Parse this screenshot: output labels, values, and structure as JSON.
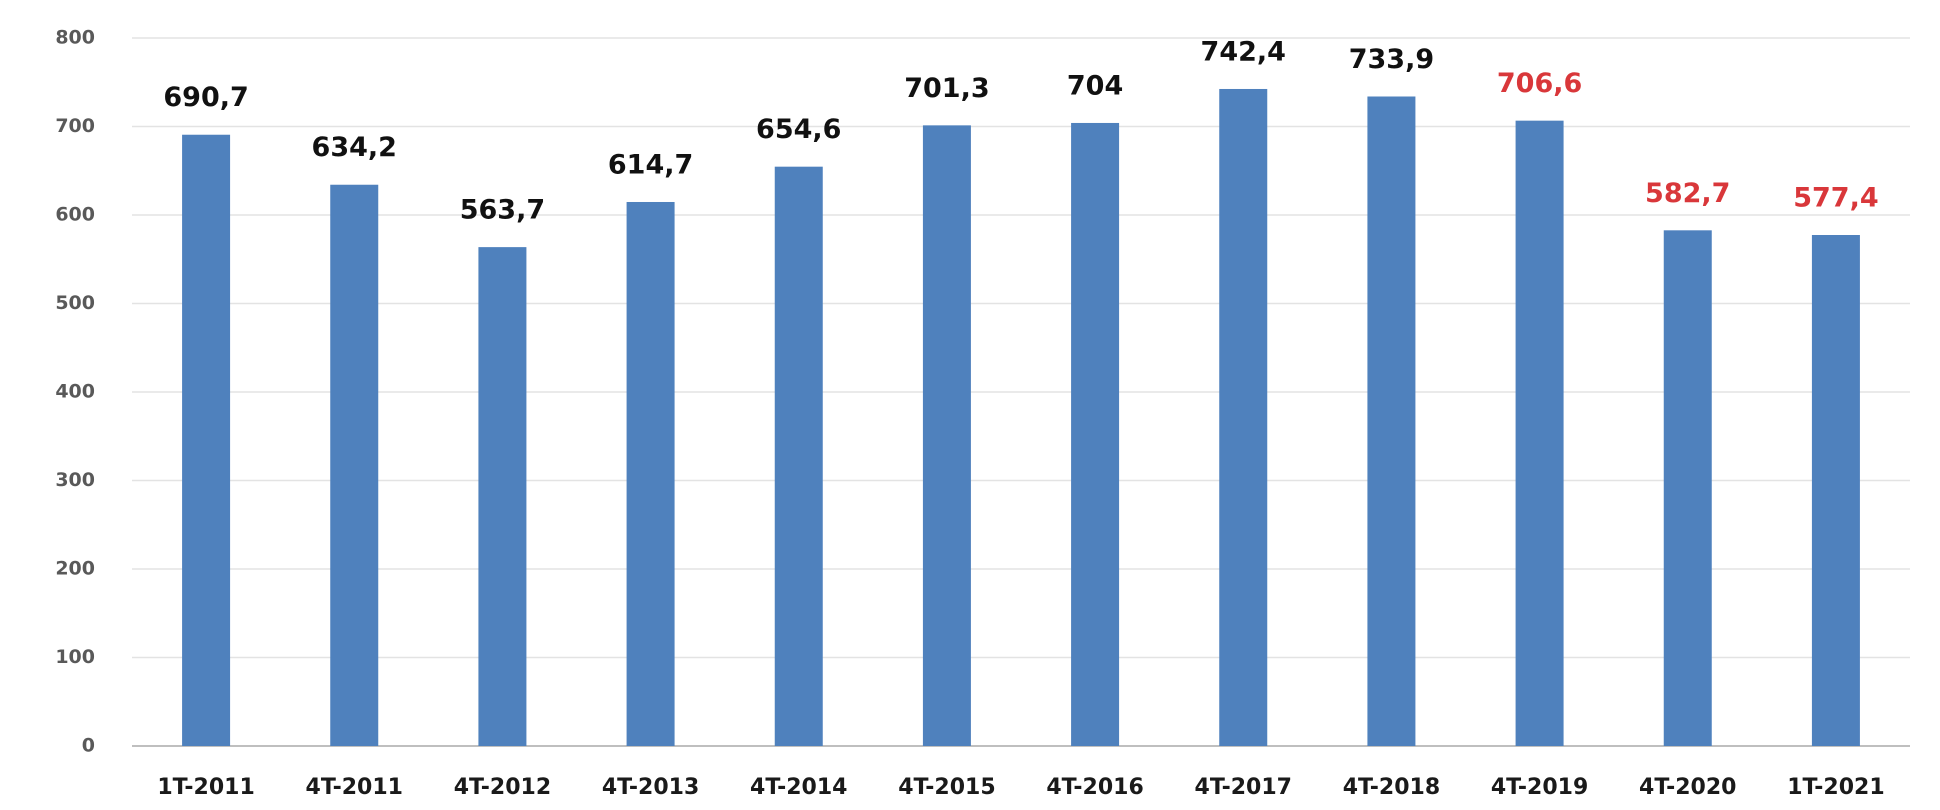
{
  "chart_data": {
    "type": "bar",
    "categories": [
      "1T-2011",
      "4T-2011",
      "4T-2012",
      "4T-2013",
      "4T-2014",
      "4T-2015",
      "4T-2016",
      "4T-2017",
      "4T-2018",
      "4T-2019",
      "4T-2020",
      "1T-2021"
    ],
    "values": [
      690.7,
      634.2,
      563.7,
      614.7,
      654.6,
      701.3,
      704,
      742.4,
      733.9,
      706.6,
      582.7,
      577.4
    ],
    "value_labels": [
      "690,7",
      "634,2",
      "563,7",
      "614,7",
      "654,6",
      "701,3",
      "704",
      "742,4",
      "733,9",
      "706,6",
      "582,7",
      "577,4"
    ],
    "value_label_colors": [
      "#111111",
      "#111111",
      "#111111",
      "#111111",
      "#111111",
      "#111111",
      "#111111",
      "#111111",
      "#111111",
      "#d9373a",
      "#d9373a",
      "#d9373a"
    ],
    "color": "#4f81bd",
    "ylim": [
      0,
      800
    ],
    "yticks": [
      0,
      100,
      200,
      300,
      400,
      500,
      600,
      700,
      800
    ],
    "grid": true
  }
}
